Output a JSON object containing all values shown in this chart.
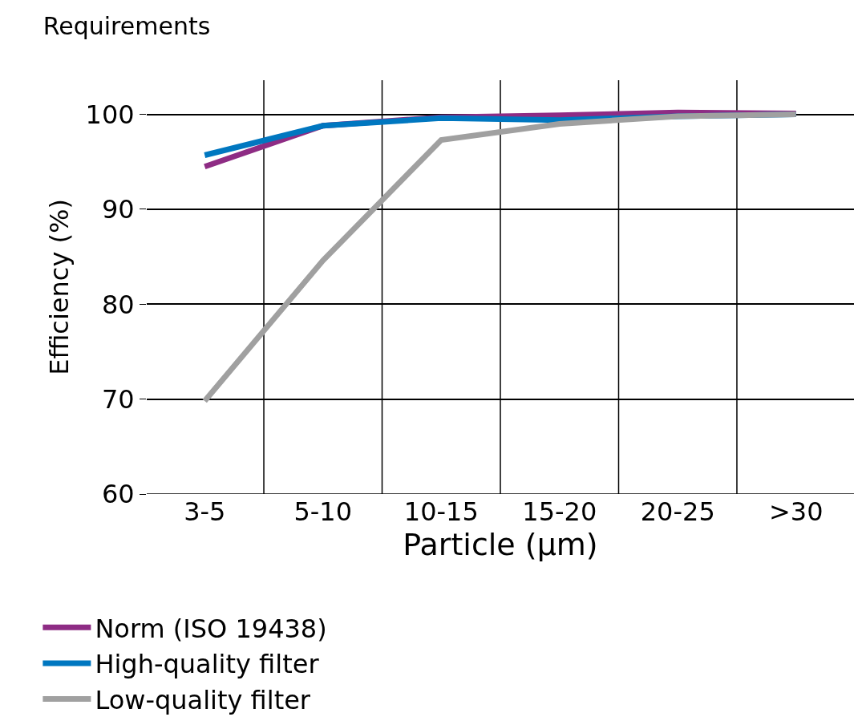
{
  "chart_data": {
    "type": "line",
    "title": "Requirements",
    "xlabel": "Particle (µm)",
    "ylabel": "Efficiency (%)",
    "categories": [
      "3-5",
      "5-10",
      "10-15",
      "15-20",
      "20-25",
      ">30"
    ],
    "series": [
      {
        "name": "Norm (ISO 19438)",
        "color": "#8e2c84",
        "values": [
          94.5,
          98.8,
          99.7,
          99.9,
          100.2,
          100.1
        ]
      },
      {
        "name": "High-quality filter",
        "color": "#0077c0",
        "values": [
          95.7,
          98.8,
          99.6,
          99.4,
          99.8,
          100
        ]
      },
      {
        "name": "Low-quality filter",
        "color": "#a0a0a0",
        "values": [
          69.8,
          84.6,
          97.3,
          99.0,
          99.8,
          100
        ]
      }
    ],
    "ylim": [
      60,
      103.6
    ],
    "yticks": [
      60,
      70,
      80,
      90,
      100
    ],
    "grid": true,
    "legend": "bottom",
    "marker": "none",
    "line_style": "solid"
  }
}
